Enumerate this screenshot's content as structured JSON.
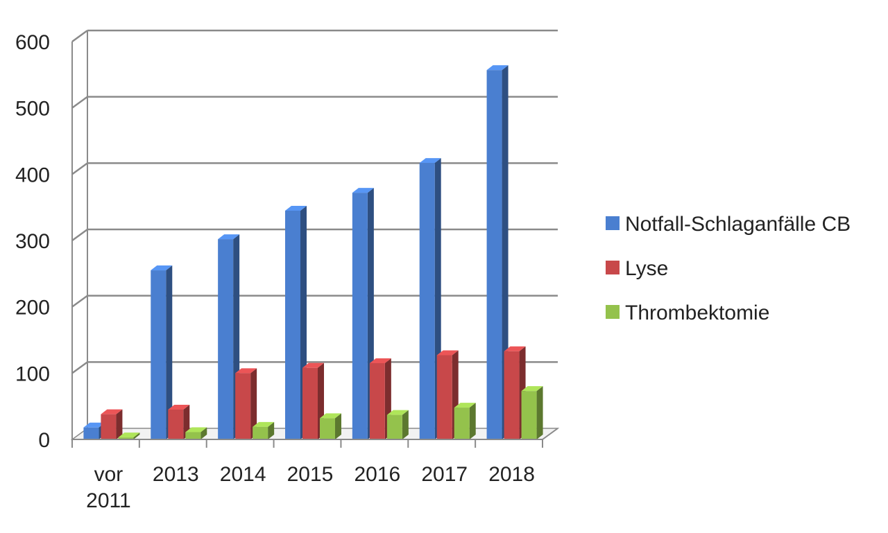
{
  "chart_data": {
    "type": "bar",
    "categories": [
      [
        "vor",
        "2011"
      ],
      [
        "2013"
      ],
      [
        "2014"
      ],
      [
        "2015"
      ],
      [
        "2016"
      ],
      [
        "2017"
      ],
      [
        "2018"
      ]
    ],
    "series": [
      {
        "name": "Notfall-Schlaganfälle CB",
        "color": "#4a7fd0",
        "values": [
          18,
          255,
          302,
          345,
          372,
          417,
          557
        ]
      },
      {
        "name": "Lyse",
        "color": "#c8484a",
        "values": [
          38,
          45,
          100,
          108,
          115,
          127,
          133
        ]
      },
      {
        "name": "Thrombektomie",
        "color": "#94c24c",
        "values": [
          3,
          11,
          19,
          32,
          37,
          48,
          73
        ]
      }
    ],
    "yticks": [
      0,
      100,
      200,
      300,
      400,
      500,
      600
    ],
    "ylim": [
      0,
      600
    ],
    "grid": true,
    "legend_position": "right",
    "title": "",
    "xlabel": "",
    "ylabel": ""
  }
}
